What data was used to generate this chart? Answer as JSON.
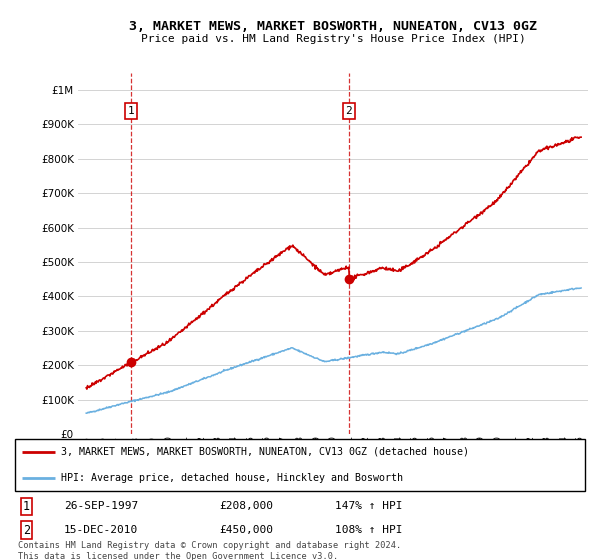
{
  "title": "3, MARKET MEWS, MARKET BOSWORTH, NUNEATON, CV13 0GZ",
  "subtitle": "Price paid vs. HM Land Registry's House Price Index (HPI)",
  "footer": "Contains HM Land Registry data © Crown copyright and database right 2024.\nThis data is licensed under the Open Government Licence v3.0.",
  "legend_line1": "3, MARKET MEWS, MARKET BOSWORTH, NUNEATON, CV13 0GZ (detached house)",
  "legend_line2": "HPI: Average price, detached house, Hinckley and Bosworth",
  "sale1_label": "1",
  "sale1_date": "26-SEP-1997",
  "sale1_price": "£208,000",
  "sale1_hpi": "147% ↑ HPI",
  "sale2_label": "2",
  "sale2_date": "15-DEC-2010",
  "sale2_price": "£450,000",
  "sale2_hpi": "108% ↑ HPI",
  "red_color": "#cc0000",
  "blue_color": "#6ab0e0",
  "vline_color": "#cc0000",
  "background_color": "#ffffff",
  "grid_color": "#cccccc",
  "ylim": [
    0,
    1050000
  ],
  "yticks": [
    0,
    100000,
    200000,
    300000,
    400000,
    500000,
    600000,
    700000,
    800000,
    900000,
    1000000
  ],
  "xlim_start": 1994.5,
  "xlim_end": 2025.5,
  "sale1_x": 1997.73,
  "sale1_y": 208000,
  "sale2_x": 2010.96,
  "sale2_y": 450000
}
